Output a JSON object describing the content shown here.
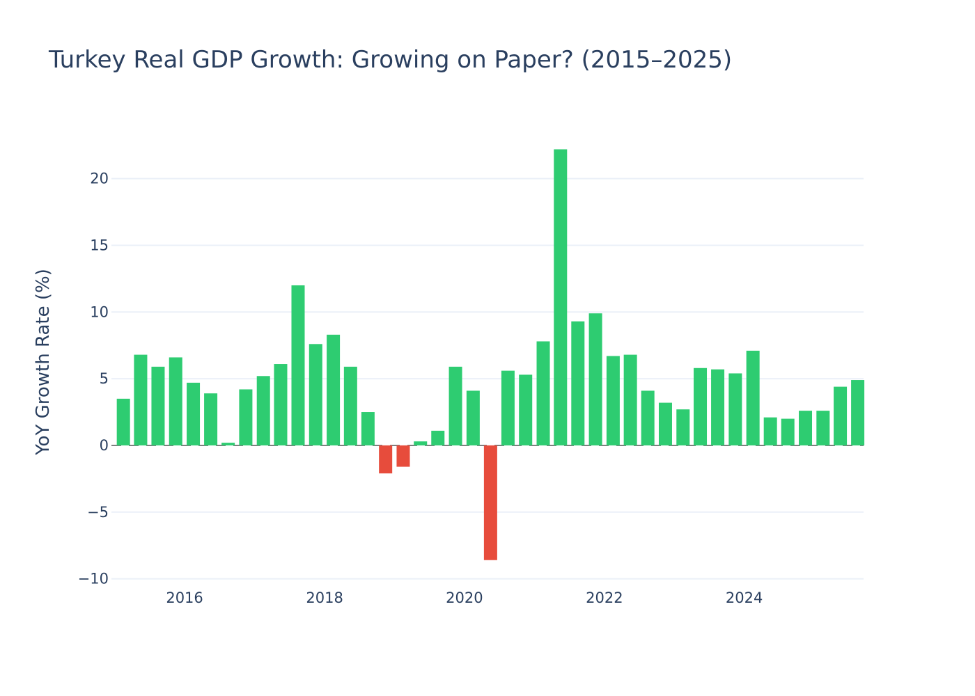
{
  "chart_data": {
    "type": "bar",
    "title": "Turkey Real GDP Growth: Growing on Paper? (2015–2025)",
    "ylabel": "YoY Growth Rate (%)",
    "xlabel": "",
    "ylim": [
      -10.7,
      24
    ],
    "y_ticks": [
      -10,
      -5,
      0,
      5,
      10,
      15,
      20
    ],
    "y_tick_labels": [
      "−10",
      "−5",
      "0",
      "5",
      "10",
      "15",
      "20"
    ],
    "x_ticks": [
      "2016-01-01",
      "2018-01-01",
      "2020-01-01",
      "2022-01-01",
      "2024-01-01"
    ],
    "x_tick_labels": [
      "2016",
      "2018",
      "2020",
      "2022",
      "2024"
    ],
    "x_range": [
      "2014-12-15",
      "2025-09-15"
    ],
    "grid": true,
    "legend": "none",
    "colors": {
      "positive": "#2ecc71",
      "negative": "#e74c3c",
      "zero_line": "#7f7f7f",
      "grid": "#ebf0f8",
      "text": "#2a3f5f"
    },
    "x": [
      "2015-01-01",
      "2015-04-01",
      "2015-07-01",
      "2015-10-01",
      "2016-01-01",
      "2016-04-01",
      "2016-07-01",
      "2016-10-01",
      "2017-01-01",
      "2017-04-01",
      "2017-07-01",
      "2017-10-01",
      "2018-01-01",
      "2018-04-01",
      "2018-07-01",
      "2018-10-01",
      "2019-01-01",
      "2019-04-01",
      "2019-07-01",
      "2019-10-01",
      "2020-01-01",
      "2020-04-01",
      "2020-07-01",
      "2020-10-01",
      "2021-01-01",
      "2021-04-01",
      "2021-07-01",
      "2021-10-01",
      "2022-01-01",
      "2022-04-01",
      "2022-07-01",
      "2022-10-01",
      "2023-01-01",
      "2023-04-01",
      "2023-07-01",
      "2023-10-01",
      "2024-01-01",
      "2024-04-01",
      "2024-07-01",
      "2024-10-01",
      "2025-01-01",
      "2025-04-01",
      "2025-07-01"
    ],
    "values": [
      3.5,
      6.8,
      5.9,
      6.6,
      4.7,
      3.9,
      0.2,
      4.2,
      5.2,
      6.1,
      12.0,
      7.6,
      8.3,
      5.9,
      2.5,
      -2.1,
      -1.6,
      0.3,
      1.1,
      5.9,
      4.1,
      -8.6,
      5.6,
      5.3,
      7.8,
      22.2,
      9.3,
      9.9,
      6.7,
      6.8,
      4.1,
      3.2,
      2.7,
      5.8,
      5.7,
      5.4,
      7.1,
      2.1,
      2.0,
      2.6,
      2.6,
      4.4,
      4.9
    ]
  }
}
